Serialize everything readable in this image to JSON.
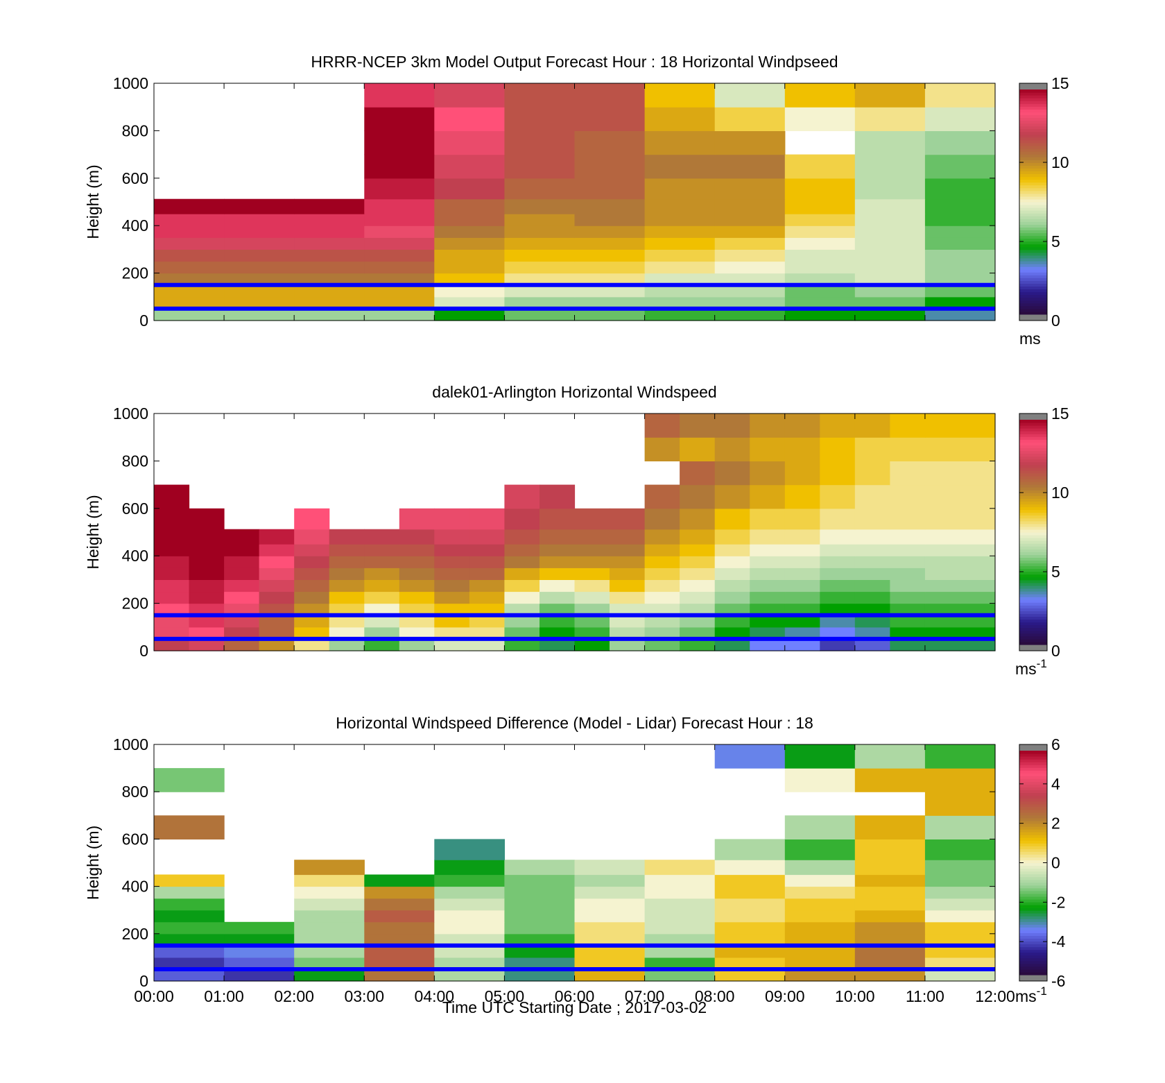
{
  "figure": {
    "xlabel": "Time UTC  Starting Date ; 2017-03-02",
    "xtick_labels": [
      "00:00",
      "01:00",
      "02:00",
      "03:00",
      "04:00",
      "05:00",
      "06:00",
      "07:00",
      "08:00",
      "09:00",
      "10:00",
      "11:00",
      "12:00"
    ]
  },
  "colors": {
    "colormap_stops": [
      "#2a0a3a",
      "#2a1a8a",
      "#7080ff",
      "#00a000",
      "#9ed29a",
      "#f5f3d0",
      "#f0c000",
      "#b07838",
      "#c04050",
      "#ff5078",
      "#a00020"
    ],
    "overflow_gray": "#808080",
    "marker_line": "#0000ff"
  },
  "chart_data": [
    {
      "type": "heatmap",
      "title": "HRRR-NCEP 3km Model Output   Forecast Hour : 18 Horizontal Windpseed",
      "ylabel": "Height (m)",
      "ylim": [
        0,
        1000
      ],
      "yticks": [
        0,
        200,
        400,
        600,
        800,
        1000
      ],
      "xlim_hours": [
        0,
        12
      ],
      "colorbar": {
        "ticks": [
          0,
          5,
          10,
          15
        ],
        "unit": "ms",
        "clim": [
          0,
          15
        ]
      },
      "reference_lines_m": [
        50,
        150
      ],
      "time_hours": [
        0,
        1,
        2,
        3,
        4,
        5,
        6,
        7,
        8,
        9,
        10,
        11
      ],
      "heights_m": [
        25,
        75,
        125,
        175,
        225,
        275,
        325,
        375,
        425,
        475,
        550,
        650,
        750,
        850,
        950
      ],
      "values": [
        [
          6,
          6,
          6,
          6,
          4.5,
          5.5,
          5.5,
          5,
          5,
          4.5,
          4.5,
          3.5
        ],
        [
          9.5,
          9.5,
          9.5,
          9.5,
          7,
          6,
          6,
          6,
          6,
          5.5,
          5.5,
          4.5
        ],
        [
          9.5,
          9.5,
          9.5,
          9.5,
          7.5,
          7,
          7,
          6.5,
          6.5,
          5.5,
          6,
          5.5
        ],
        [
          10.5,
          10.5,
          10.5,
          10.5,
          9,
          8,
          8,
          7,
          7,
          6.5,
          7,
          6
        ],
        [
          11,
          11,
          11,
          11,
          9.5,
          8.5,
          8.5,
          8,
          7.5,
          7,
          7,
          6
        ],
        [
          11.5,
          11.5,
          11.5,
          11.5,
          9.5,
          9,
          9,
          8.5,
          8,
          7,
          7,
          6
        ],
        [
          12.5,
          12.5,
          12.5,
          12.5,
          10,
          9.5,
          9.5,
          9,
          8.5,
          7.5,
          7,
          5.5
        ],
        [
          14,
          14,
          14,
          13,
          10.5,
          10,
          10,
          9.5,
          9.5,
          8,
          7,
          5.5
        ],
        [
          14,
          14,
          14,
          14,
          11,
          10,
          10.5,
          10,
          10,
          8.5,
          7,
          5
        ],
        [
          15,
          15,
          15,
          14,
          11,
          10.5,
          10.5,
          10,
          10,
          9,
          7,
          5
        ],
        [
          null,
          null,
          null,
          14.5,
          12,
          11,
          11,
          10,
          10,
          9,
          6.5,
          5
        ],
        [
          null,
          null,
          null,
          15,
          12.5,
          11.5,
          11,
          10.5,
          10.5,
          8.5,
          6.5,
          5.5
        ],
        [
          null,
          null,
          null,
          15,
          13,
          11.5,
          11,
          10,
          10,
          null,
          6.5,
          6
        ],
        [
          null,
          null,
          null,
          15,
          13.5,
          11.5,
          11.5,
          9.5,
          8.5,
          7.5,
          8,
          7
        ],
        [
          null,
          null,
          null,
          14,
          12.5,
          11.5,
          11.5,
          9,
          7,
          9,
          9.5,
          8
        ]
      ]
    },
    {
      "type": "heatmap",
      "title": "dalek01-Arlington  Horizontal Windspeed",
      "ylabel": "Height (m)",
      "ylim": [
        0,
        1000
      ],
      "yticks": [
        0,
        200,
        400,
        600,
        800,
        1000
      ],
      "xlim_hours": [
        0,
        12
      ],
      "colorbar": {
        "ticks": [
          0,
          5,
          10,
          15
        ],
        "unit": "ms-1",
        "clim": [
          0,
          15
        ]
      },
      "reference_lines_m": [
        50,
        150
      ],
      "time_hours": [
        0,
        0.5,
        1,
        1.5,
        2,
        2.5,
        3,
        3.5,
        4,
        4.5,
        5,
        5.5,
        6,
        6.5,
        7,
        7.5,
        8,
        8.5,
        9,
        9.5,
        10,
        10.5,
        11,
        11.5
      ],
      "heights_m": [
        25,
        75,
        125,
        175,
        225,
        275,
        325,
        375,
        425,
        475,
        550,
        650,
        750,
        850,
        950
      ],
      "values": [
        [
          12,
          12.5,
          11,
          10,
          8,
          6,
          5,
          6,
          7,
          7,
          5,
          4,
          4.5,
          6,
          5.5,
          5,
          4,
          3,
          3,
          2,
          2.5,
          4,
          4,
          4
        ],
        [
          13,
          13.5,
          12,
          11,
          9,
          7.5,
          6,
          7.5,
          8,
          8,
          5.5,
          4.5,
          5,
          6.5,
          6,
          5.5,
          4.5,
          4,
          3.5,
          3,
          3.5,
          4.5,
          4.5,
          4.5
        ],
        [
          13,
          14,
          12.5,
          11,
          9.5,
          8,
          7,
          8,
          9,
          8.5,
          6,
          5,
          5.5,
          7,
          6.5,
          6,
          5,
          4.5,
          4.5,
          3.5,
          4,
          5,
          5,
          5
        ],
        [
          13.5,
          14,
          13,
          11.5,
          10,
          8.5,
          7.5,
          8.5,
          9,
          9,
          6.5,
          5.5,
          6,
          7,
          7,
          6.5,
          5.5,
          5,
          5,
          4.5,
          4.5,
          5,
          5,
          5
        ],
        [
          14,
          14.5,
          13.5,
          12,
          10.5,
          9,
          8.5,
          9,
          10,
          9.5,
          7.5,
          6.5,
          7,
          8,
          7.5,
          7,
          6,
          5.5,
          5.5,
          5,
          5,
          5.5,
          5.5,
          5.5
        ],
        [
          14,
          14.5,
          14,
          12.5,
          11,
          10,
          9.5,
          10,
          10.5,
          10,
          8.5,
          7.5,
          8,
          9,
          8,
          7.5,
          6.5,
          6,
          6,
          5.5,
          5.5,
          6,
          6,
          6
        ],
        [
          14.5,
          15,
          14.5,
          13,
          11.5,
          10.5,
          10,
          10.5,
          11,
          11,
          9.5,
          9,
          9,
          9.5,
          8.5,
          8,
          7,
          6.5,
          6.5,
          6,
          6,
          6,
          6.5,
          6.5
        ],
        [
          14.5,
          15,
          14.5,
          13.5,
          12,
          11,
          11,
          11,
          11.5,
          11.5,
          10.5,
          10,
          10,
          10,
          9,
          8.5,
          7.5,
          7,
          7,
          6.5,
          6.5,
          6.5,
          6.5,
          6.5
        ],
        [
          15,
          15,
          15,
          14,
          12.5,
          11.5,
          11.5,
          11.5,
          12,
          12,
          11,
          10.5,
          10.5,
          10.5,
          9.5,
          9,
          8,
          7.5,
          7.5,
          7,
          7,
          7,
          7,
          7
        ],
        [
          15,
          15,
          15,
          14.5,
          13,
          12,
          12,
          12,
          12.5,
          12.5,
          11.5,
          11,
          11,
          11,
          10,
          9.5,
          8.5,
          8,
          8,
          7.5,
          7.5,
          7.5,
          7.5,
          7.5
        ],
        [
          15,
          15,
          null,
          null,
          13.5,
          null,
          null,
          13,
          13,
          13,
          12,
          11.5,
          11.5,
          11.5,
          10.5,
          10,
          9,
          8.5,
          8.5,
          8,
          8,
          8,
          8,
          8
        ],
        [
          15,
          null,
          null,
          null,
          null,
          null,
          null,
          null,
          null,
          null,
          12.5,
          12,
          null,
          null,
          11,
          10.5,
          10,
          9.5,
          9,
          8.5,
          8,
          8,
          8,
          8
        ],
        [
          null,
          null,
          null,
          null,
          null,
          null,
          null,
          null,
          null,
          null,
          null,
          null,
          null,
          null,
          null,
          11,
          10.5,
          10,
          9.5,
          9,
          8.5,
          8,
          8,
          8
        ],
        [
          null,
          null,
          null,
          null,
          null,
          null,
          null,
          null,
          null,
          null,
          null,
          null,
          null,
          null,
          10,
          9.5,
          10,
          9.5,
          9.5,
          9,
          8.5,
          8.5,
          8.5,
          8.5
        ],
        [
          null,
          null,
          null,
          null,
          null,
          null,
          null,
          null,
          null,
          null,
          null,
          null,
          null,
          null,
          11,
          10.5,
          10.5,
          10,
          10,
          9.5,
          9.5,
          9,
          9,
          9
        ]
      ]
    },
    {
      "type": "heatmap",
      "title": "Horizontal Windspeed Difference (Model - Lidar) Forecast Hour : 18",
      "xlabel": "Time UTC  Starting Date ; 2017-03-02",
      "ylabel": "Height (m)",
      "ylim": [
        0,
        1000
      ],
      "yticks": [
        0,
        200,
        400,
        600,
        800,
        1000
      ],
      "xlim_hours": [
        0,
        12
      ],
      "colorbar": {
        "ticks": [
          -6,
          -4,
          -2,
          0,
          2,
          4,
          6
        ],
        "unit": "ms-1",
        "clim": [
          -6,
          6
        ]
      },
      "reference_lines_m": [
        50,
        150
      ],
      "time_hours": [
        0,
        1,
        2,
        3,
        4,
        5,
        6,
        7,
        8,
        9,
        10,
        11
      ],
      "heights_m": [
        25,
        75,
        125,
        175,
        225,
        275,
        325,
        375,
        425,
        475,
        550,
        650,
        750,
        850,
        950
      ],
      "values": [
        [
          -4,
          -4.5,
          -2.5,
          2.5,
          -1,
          -3,
          1.5,
          -1.5,
          1,
          2,
          2,
          -0.5
        ],
        [
          -4.5,
          -4,
          -1.5,
          3,
          -1,
          -3,
          1,
          -2,
          1,
          1.5,
          2.5,
          0.5
        ],
        [
          -4,
          -3.5,
          -1,
          3,
          -0.5,
          -2.5,
          1,
          -1,
          1.5,
          1.5,
          2.5,
          1
        ],
        [
          -2.5,
          -2.5,
          -1,
          2.5,
          -0.5,
          -2,
          0.5,
          -1,
          1,
          1.5,
          2,
          1
        ],
        [
          -2,
          -2,
          -1,
          2.5,
          0,
          -1.5,
          0.5,
          -0.5,
          1,
          1.5,
          2,
          1
        ],
        [
          -2.5,
          null,
          -1,
          3,
          0,
          -1.5,
          0,
          -0.5,
          0.5,
          1,
          1.5,
          0
        ],
        [
          -2,
          null,
          -0.5,
          2.5,
          -0.5,
          -1.5,
          0,
          -0.5,
          0.5,
          1,
          1,
          -0.5
        ],
        [
          -1,
          null,
          0,
          2,
          -1,
          -1.5,
          -0.5,
          0,
          1,
          0.5,
          1,
          -1
        ],
        [
          1,
          null,
          0.5,
          -2.5,
          -2,
          -1.5,
          -1,
          0,
          1,
          0,
          1.5,
          -1.5
        ],
        [
          null,
          null,
          2,
          null,
          -2.5,
          -1,
          -0.5,
          0.5,
          0,
          -1,
          1,
          -1.5
        ],
        [
          null,
          null,
          null,
          null,
          -3,
          null,
          null,
          null,
          -1,
          -2,
          1,
          -2
        ],
        [
          2.5,
          null,
          null,
          null,
          null,
          null,
          null,
          null,
          null,
          -1,
          1.5,
          -1
        ],
        [
          null,
          null,
          null,
          null,
          null,
          null,
          null,
          null,
          null,
          null,
          null,
          1.5
        ],
        [
          -1.5,
          null,
          null,
          null,
          null,
          null,
          null,
          null,
          null,
          0,
          1.5,
          1.5
        ],
        [
          null,
          null,
          null,
          null,
          null,
          null,
          null,
          null,
          -3.5,
          -2.5,
          -1,
          -2
        ]
      ]
    }
  ]
}
